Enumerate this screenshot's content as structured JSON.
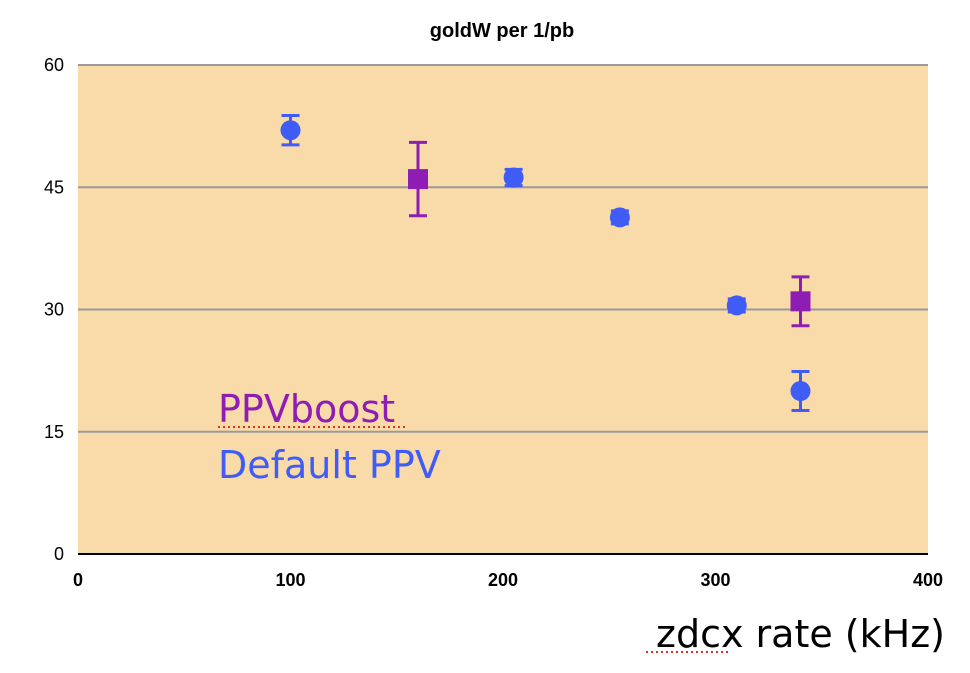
{
  "chart_data": {
    "type": "scatter",
    "title": "goldW per 1/pb",
    "xlabel": "zdcx rate (kHz)",
    "ylabel": "",
    "xlim": [
      0,
      400
    ],
    "ylim": [
      0,
      60
    ],
    "xticks": [
      "0",
      "100",
      "200",
      "300",
      "400"
    ],
    "yticks": [
      "0",
      "15",
      "30",
      "45",
      "60"
    ],
    "grid": "horizontal",
    "plot_background": "#f9dba9",
    "series": [
      {
        "name": "PPVboost",
        "color": "#8e1db3",
        "marker": "square",
        "points": [
          {
            "x": 160,
            "y": 46,
            "err": 4.5
          },
          {
            "x": 340,
            "y": 31,
            "err": 3
          }
        ]
      },
      {
        "name": "Default PPV",
        "color": "#3f5cf6",
        "marker": "circle",
        "points": [
          {
            "x": 100,
            "y": 52,
            "err": 1.8
          },
          {
            "x": 205,
            "y": 46.2,
            "err": 1
          },
          {
            "x": 255,
            "y": 41.3,
            "err": 0.8
          },
          {
            "x": 310,
            "y": 30.5,
            "err": 0.8
          },
          {
            "x": 340,
            "y": 20,
            "err": 2.4
          }
        ]
      }
    ]
  }
}
